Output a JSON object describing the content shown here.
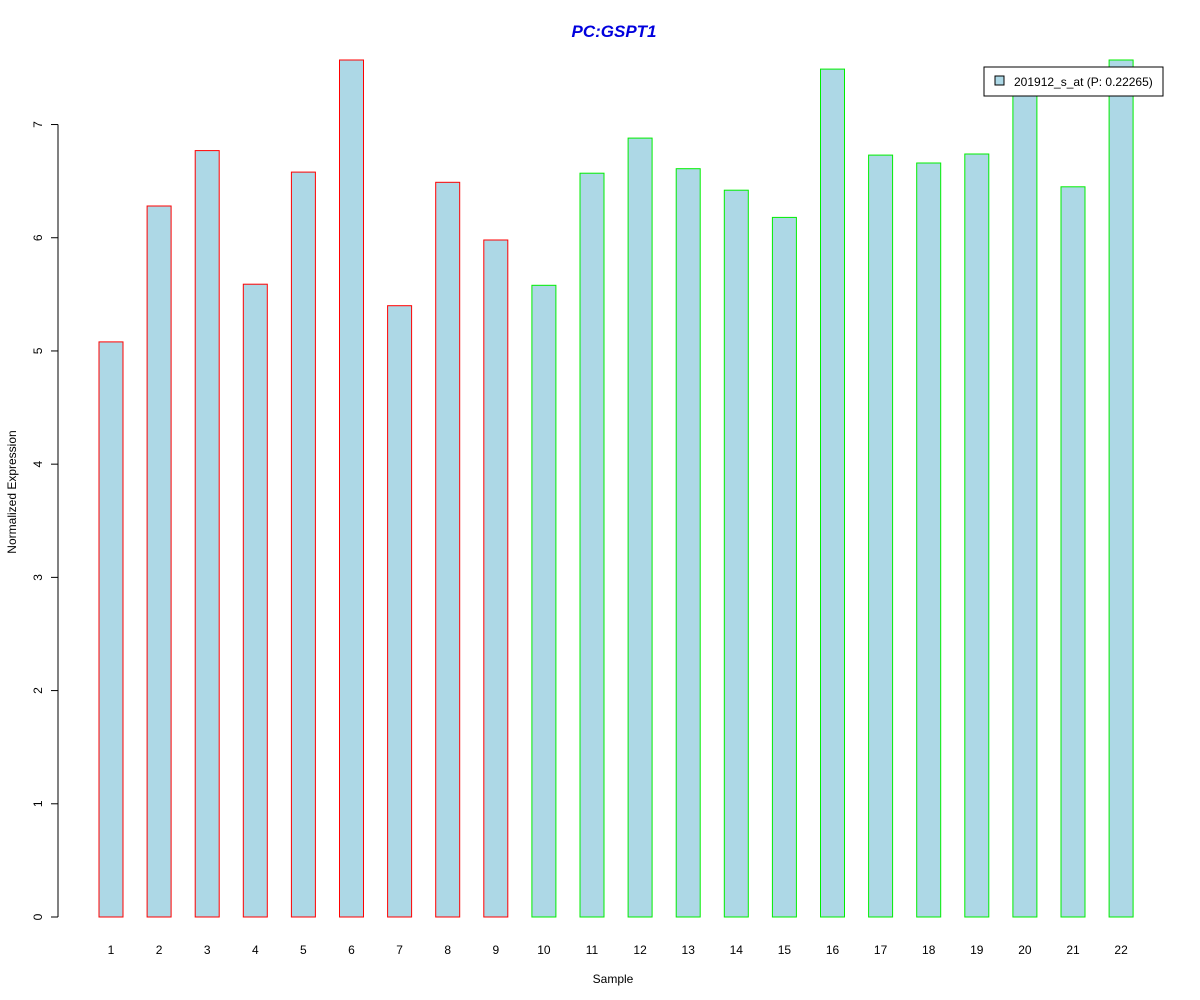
{
  "chart_data": {
    "type": "bar",
    "title": "PC:GSPT1",
    "xlabel": "Sample",
    "ylabel": "Normalized Expression",
    "categories": [
      "1",
      "2",
      "3",
      "4",
      "5",
      "6",
      "7",
      "8",
      "9",
      "10",
      "11",
      "12",
      "13",
      "14",
      "15",
      "16",
      "17",
      "18",
      "19",
      "20",
      "21",
      "22"
    ],
    "values": [
      5.08,
      6.28,
      6.77,
      5.59,
      6.58,
      7.57,
      5.4,
      6.49,
      5.98,
      5.58,
      6.57,
      6.88,
      6.61,
      6.42,
      6.18,
      7.49,
      6.73,
      6.66,
      6.74,
      7.38,
      6.45,
      7.57
    ],
    "group": [
      "red",
      "red",
      "red",
      "red",
      "red",
      "red",
      "red",
      "red",
      "red",
      "green",
      "green",
      "green",
      "green",
      "green",
      "green",
      "green",
      "green",
      "green",
      "green",
      "green",
      "green",
      "green"
    ],
    "ylim": [
      0,
      7.57
    ],
    "yticks": [
      0,
      1,
      2,
      3,
      4,
      5,
      6,
      7
    ],
    "grid": false,
    "legend": {
      "position": "top-right",
      "entries": [
        "201912_s_at (P: 0.22265)"
      ]
    },
    "colors": {
      "title": "#0000dd",
      "bar_fill": "#add8e6",
      "border_red": "#ff0000",
      "border_green": "#00ee00",
      "axis": "#000000"
    }
  }
}
